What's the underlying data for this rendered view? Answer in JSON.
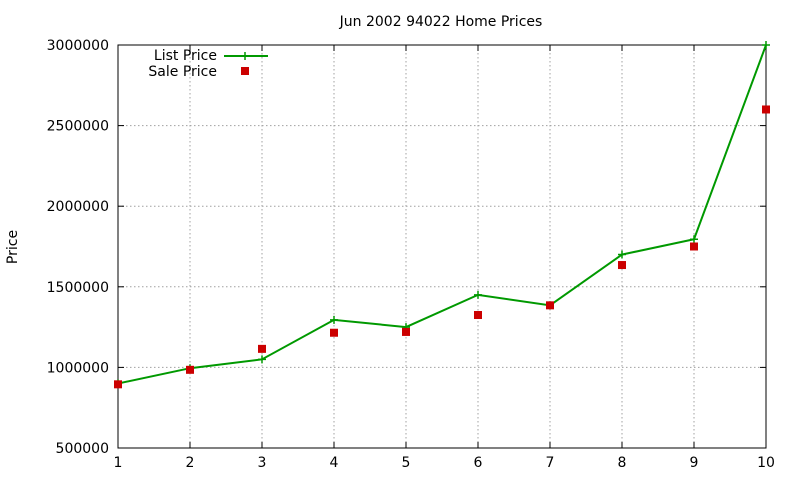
{
  "chart_data": {
    "type": "line",
    "title": "Jun 2002 94022 Home Prices",
    "xlabel": "",
    "ylabel": "Price",
    "x": [
      1,
      2,
      3,
      4,
      5,
      6,
      7,
      8,
      9,
      10
    ],
    "xlim": [
      1,
      10
    ],
    "ylim": [
      500000,
      3000000
    ],
    "xticks": [
      "1",
      "2",
      "3",
      "4",
      "5",
      "6",
      "7",
      "8",
      "9",
      "10"
    ],
    "yticks": [
      "500000",
      "1000000",
      "1500000",
      "2000000",
      "2500000",
      "3000000"
    ],
    "ytick_values": [
      500000,
      1000000,
      1500000,
      2000000,
      2500000,
      3000000
    ],
    "grid": true,
    "legend_position": "top-left",
    "series": [
      {
        "name": "List Price",
        "style": "lines+points",
        "marker": "plus",
        "color": "#009900",
        "values": [
          900000,
          995000,
          1050000,
          1295000,
          1250000,
          1450000,
          1385000,
          1700000,
          1795000,
          3000000
        ]
      },
      {
        "name": "Sale Price",
        "style": "points",
        "marker": "square",
        "color": "#cc0000",
        "values": [
          895000,
          985000,
          1115000,
          1215000,
          1220000,
          1325000,
          1385000,
          1635000,
          1750000,
          2600000
        ]
      }
    ]
  }
}
